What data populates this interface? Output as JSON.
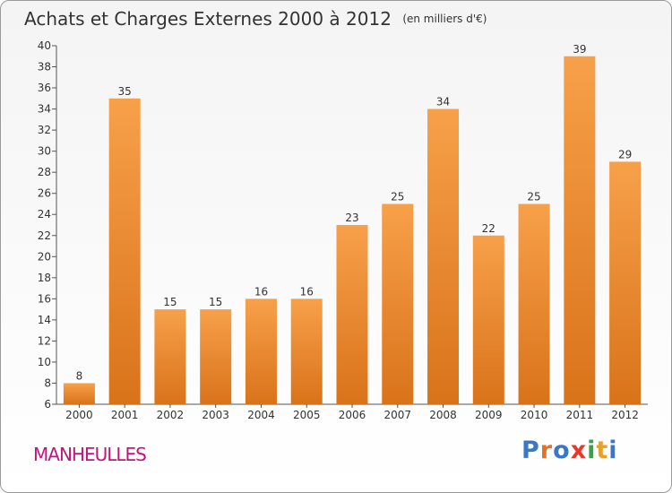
{
  "header": {
    "title": "Achats et Charges Externes 2000 à 2012",
    "unit": "(en milliers d'€)"
  },
  "footer": {
    "commune": "MANHEULLES",
    "logo": "Proxiti"
  },
  "colors": {
    "bar_light": "#f7a04a",
    "bar_dark": "#d9731a",
    "axis": "#555555",
    "commune": "#c0167a",
    "logo": [
      "#3a77c8",
      "#e5702a",
      "#3a77c8",
      "#e53a2a",
      "#3aa04a",
      "#e5a12a",
      "#3a77c8"
    ]
  },
  "chart_data": {
    "type": "bar",
    "title": "Achats et Charges Externes 2000 à 2012",
    "subtitle": "(en milliers d'€)",
    "categories": [
      "2000",
      "2001",
      "2002",
      "2003",
      "2004",
      "2005",
      "2006",
      "2007",
      "2008",
      "2009",
      "2010",
      "2011",
      "2012"
    ],
    "values": [
      8,
      35,
      15,
      15,
      16,
      16,
      23,
      25,
      34,
      22,
      25,
      39,
      29
    ],
    "ylim": [
      6,
      40
    ],
    "yticks": [
      6,
      8,
      10,
      12,
      14,
      16,
      18,
      20,
      22,
      24,
      26,
      28,
      30,
      32,
      34,
      36,
      38,
      40
    ],
    "grid": false,
    "data_labels": true
  }
}
